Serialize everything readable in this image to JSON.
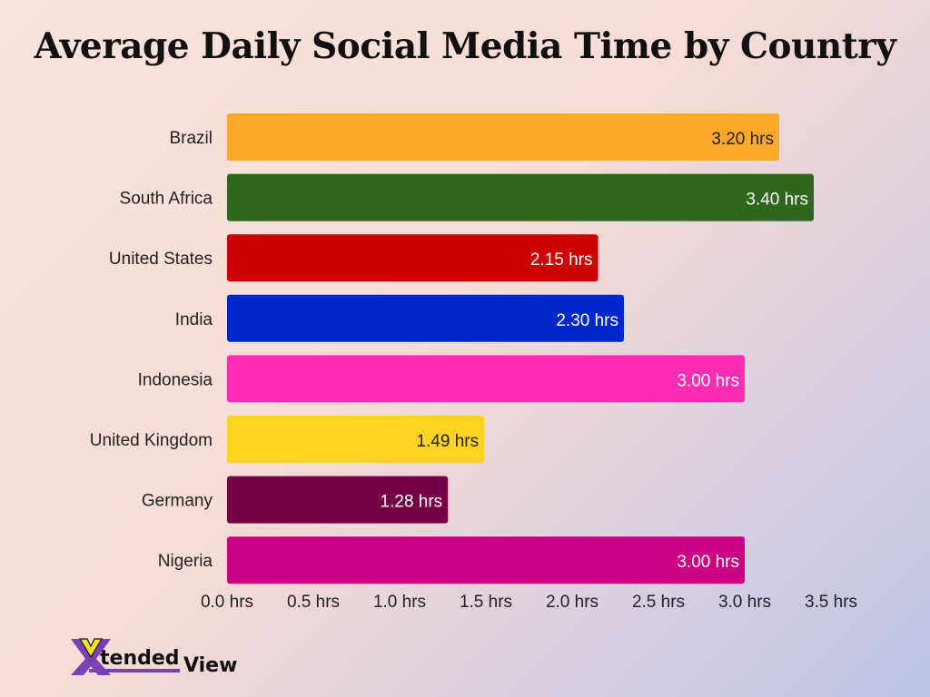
{
  "chart_data": {
    "type": "bar",
    "orientation": "horizontal",
    "title": "Average Daily Social Media Time by Country",
    "categories": [
      "Brazil",
      "South Africa",
      "United States",
      "India",
      "Indonesia",
      "United Kingdom",
      "Germany",
      "Nigeria"
    ],
    "values": [
      3.2,
      3.4,
      2.15,
      2.3,
      3.0,
      1.49,
      1.28,
      3.0
    ],
    "data_labels": [
      "3.20 hrs",
      "3.40 hrs",
      "2.15 hrs",
      "2.30 hrs",
      "3.00 hrs",
      "1.49 hrs",
      "1.28 hrs",
      "3.00 hrs"
    ],
    "colors": [
      "#fda828",
      "#2e661d",
      "#cc0000",
      "#0228cc",
      "#fe2eb4",
      "#ffd322",
      "#760046",
      "#cc0082"
    ],
    "label_colors": [
      "#222222",
      "#ffffff",
      "#ffffff",
      "#ffffff",
      "#ffffff",
      "#222222",
      "#ffffff",
      "#ffffff"
    ],
    "xlim": [
      0,
      3.5
    ],
    "xticks": [
      0,
      0.5,
      1,
      1.5,
      2,
      2.5,
      3,
      3.5
    ],
    "xtick_labels": [
      "0.0 hrs",
      "0.5 hrs",
      "1.0 hrs",
      "1.5 hrs",
      "2.0 hrs",
      "2.5 hrs",
      "3.0 hrs",
      "3.5 hrs"
    ],
    "xlabel": "",
    "ylabel": "",
    "grid": false,
    "legend": "none"
  },
  "logo": {
    "text": "XtendedView",
    "colors": [
      "#7b3fb8",
      "#f2e11e",
      "#111111"
    ]
  }
}
